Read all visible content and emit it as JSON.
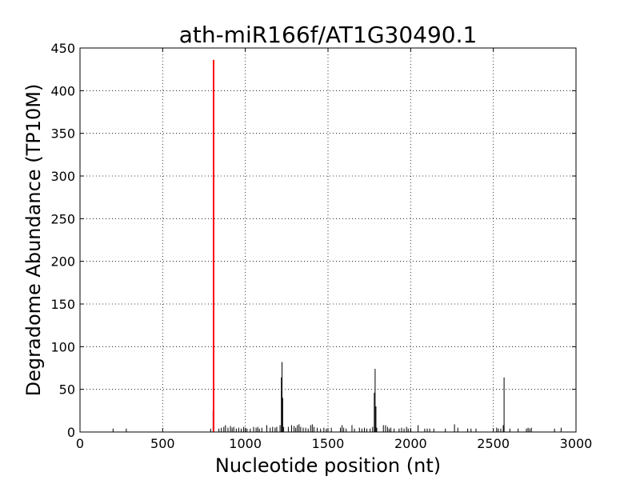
{
  "chart_data": {
    "type": "bar",
    "title": "ath-miR166f/AT1G30490.1",
    "xlabel": "Nucleotide position (nt)",
    "ylabel": "Degradome Abundance (TP10M)",
    "xlim": [
      0,
      3000
    ],
    "ylim": [
      0,
      450
    ],
    "xticks": [
      0,
      500,
      1000,
      1500,
      2000,
      2500,
      3000
    ],
    "yticks": [
      0,
      50,
      100,
      150,
      200,
      250,
      300,
      350,
      400,
      450
    ],
    "grid": true,
    "colors": {
      "background_series": "#000000",
      "target_site": "#ff0000"
    },
    "series": [
      {
        "x": [
          200,
          280,
          790,
          805,
          840,
          855,
          870,
          880,
          895,
          910,
          920,
          930,
          945,
          960,
          975,
          990,
          1000,
          1010,
          1030,
          1050,
          1065,
          1075,
          1085,
          1100,
          1130,
          1150,
          1165,
          1180,
          1190,
          1210,
          1218,
          1222,
          1226,
          1232,
          1260,
          1280,
          1295,
          1305,
          1315,
          1325,
          1335,
          1350,
          1365,
          1380,
          1395,
          1405,
          1415,
          1435,
          1455,
          1475,
          1490,
          1500,
          1520,
          1575,
          1585,
          1595,
          1610,
          1645,
          1660,
          1690,
          1705,
          1720,
          1735,
          1755,
          1770,
          1780,
          1785,
          1790,
          1795,
          1835,
          1848,
          1860,
          1870,
          1880,
          1900,
          1930,
          1945,
          1960,
          1975,
          1985,
          2000,
          2045,
          2085,
          2100,
          2115,
          2140,
          2210,
          2265,
          2285,
          2345,
          2365,
          2395,
          2520,
          2530,
          2545,
          2560,
          2565,
          2600,
          2650,
          2700,
          2710,
          2720,
          2730,
          2870,
          2910
        ],
        "values": [
          4,
          4,
          4,
          25,
          4,
          5,
          6,
          8,
          5,
          7,
          5,
          6,
          4,
          5,
          4,
          6,
          5,
          4,
          4,
          6,
          5,
          6,
          4,
          5,
          8,
          5,
          6,
          5,
          6,
          8,
          64,
          82,
          40,
          6,
          6,
          8,
          7,
          5,
          8,
          9,
          6,
          5,
          5,
          4,
          8,
          9,
          6,
          5,
          4,
          5,
          4,
          4,
          5,
          5,
          8,
          5,
          4,
          8,
          4,
          5,
          4,
          5,
          4,
          4,
          6,
          46,
          74,
          30,
          5,
          8,
          8,
          6,
          4,
          5,
          4,
          4,
          5,
          4,
          6,
          4,
          4,
          8,
          4,
          4,
          4,
          4,
          4,
          9,
          5,
          4,
          4,
          4,
          5,
          4,
          4,
          8,
          64,
          4,
          4,
          4,
          5,
          4,
          5,
          4,
          5
        ]
      },
      {
        "x": [
          808
        ],
        "values": [
          436
        ]
      }
    ]
  }
}
